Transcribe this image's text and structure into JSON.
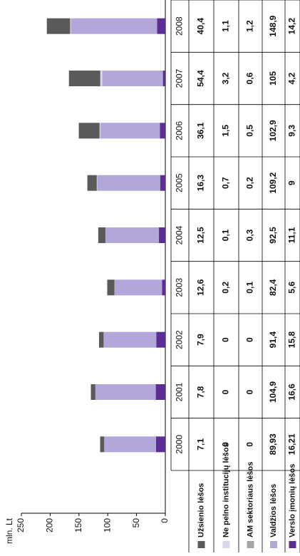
{
  "chart_data": {
    "type": "bar",
    "stacked": true,
    "y_label": "mln. Lt",
    "categories": [
      "2000",
      "2001",
      "2002",
      "2003",
      "2004",
      "2005",
      "2006",
      "2007",
      "2008"
    ],
    "series": [
      {
        "name": "Užsienio lėšos",
        "color": "#5a5a5a",
        "values": [
          7.1,
          7.8,
          7.9,
          12.6,
          12.5,
          16.3,
          36.1,
          54.4,
          40.4
        ],
        "value_labels": [
          "7,1",
          "7,8",
          "7,9",
          "12,6",
          "12,5",
          "16,3",
          "36,1",
          "54,4",
          "40,4"
        ]
      },
      {
        "name": "Ne pelno institucijų lėšos",
        "color": "#dcd5ec",
        "values": [
          0,
          0,
          0,
          0.2,
          0.1,
          0.7,
          1.5,
          3.2,
          1.1
        ],
        "value_labels": [
          "0",
          "0",
          "0",
          "0,2",
          "0,1",
          "0,7",
          "1,5",
          "3,2",
          "1,1"
        ]
      },
      {
        "name": "AM sektoriaus lėšos",
        "color": "#a6a6a6",
        "values": [
          0,
          0,
          0,
          0.1,
          0.3,
          0.2,
          0.5,
          0.6,
          1.2
        ],
        "value_labels": [
          "0",
          "0",
          "0",
          "0,1",
          "0,3",
          "0,2",
          "0,5",
          "0,6",
          "1,2"
        ]
      },
      {
        "name": "Valdžios lėšos",
        "color": "#b3a6da",
        "values": [
          89.93,
          104.9,
          91.4,
          82.4,
          92.5,
          109.2,
          102.9,
          105,
          148.9
        ],
        "value_labels": [
          "89,93",
          "104,9",
          "91,4",
          "82,4",
          "92,5",
          "109,2",
          "102,9",
          "105",
          "148,9"
        ]
      },
      {
        "name": "Verslo įmonių lėšos",
        "color": "#5b2d95",
        "values": [
          16.21,
          16.6,
          15.8,
          5.6,
          11.1,
          9,
          9.3,
          4.2,
          14.2
        ],
        "value_labels": [
          "16,21",
          "16,6",
          "15,8",
          "5,6",
          "11,1",
          "9",
          "9,3",
          "4,2",
          "14,2"
        ]
      }
    ],
    "ylim": [
      0,
      250
    ],
    "yticks": [
      0,
      50,
      100,
      150,
      200,
      250
    ]
  }
}
